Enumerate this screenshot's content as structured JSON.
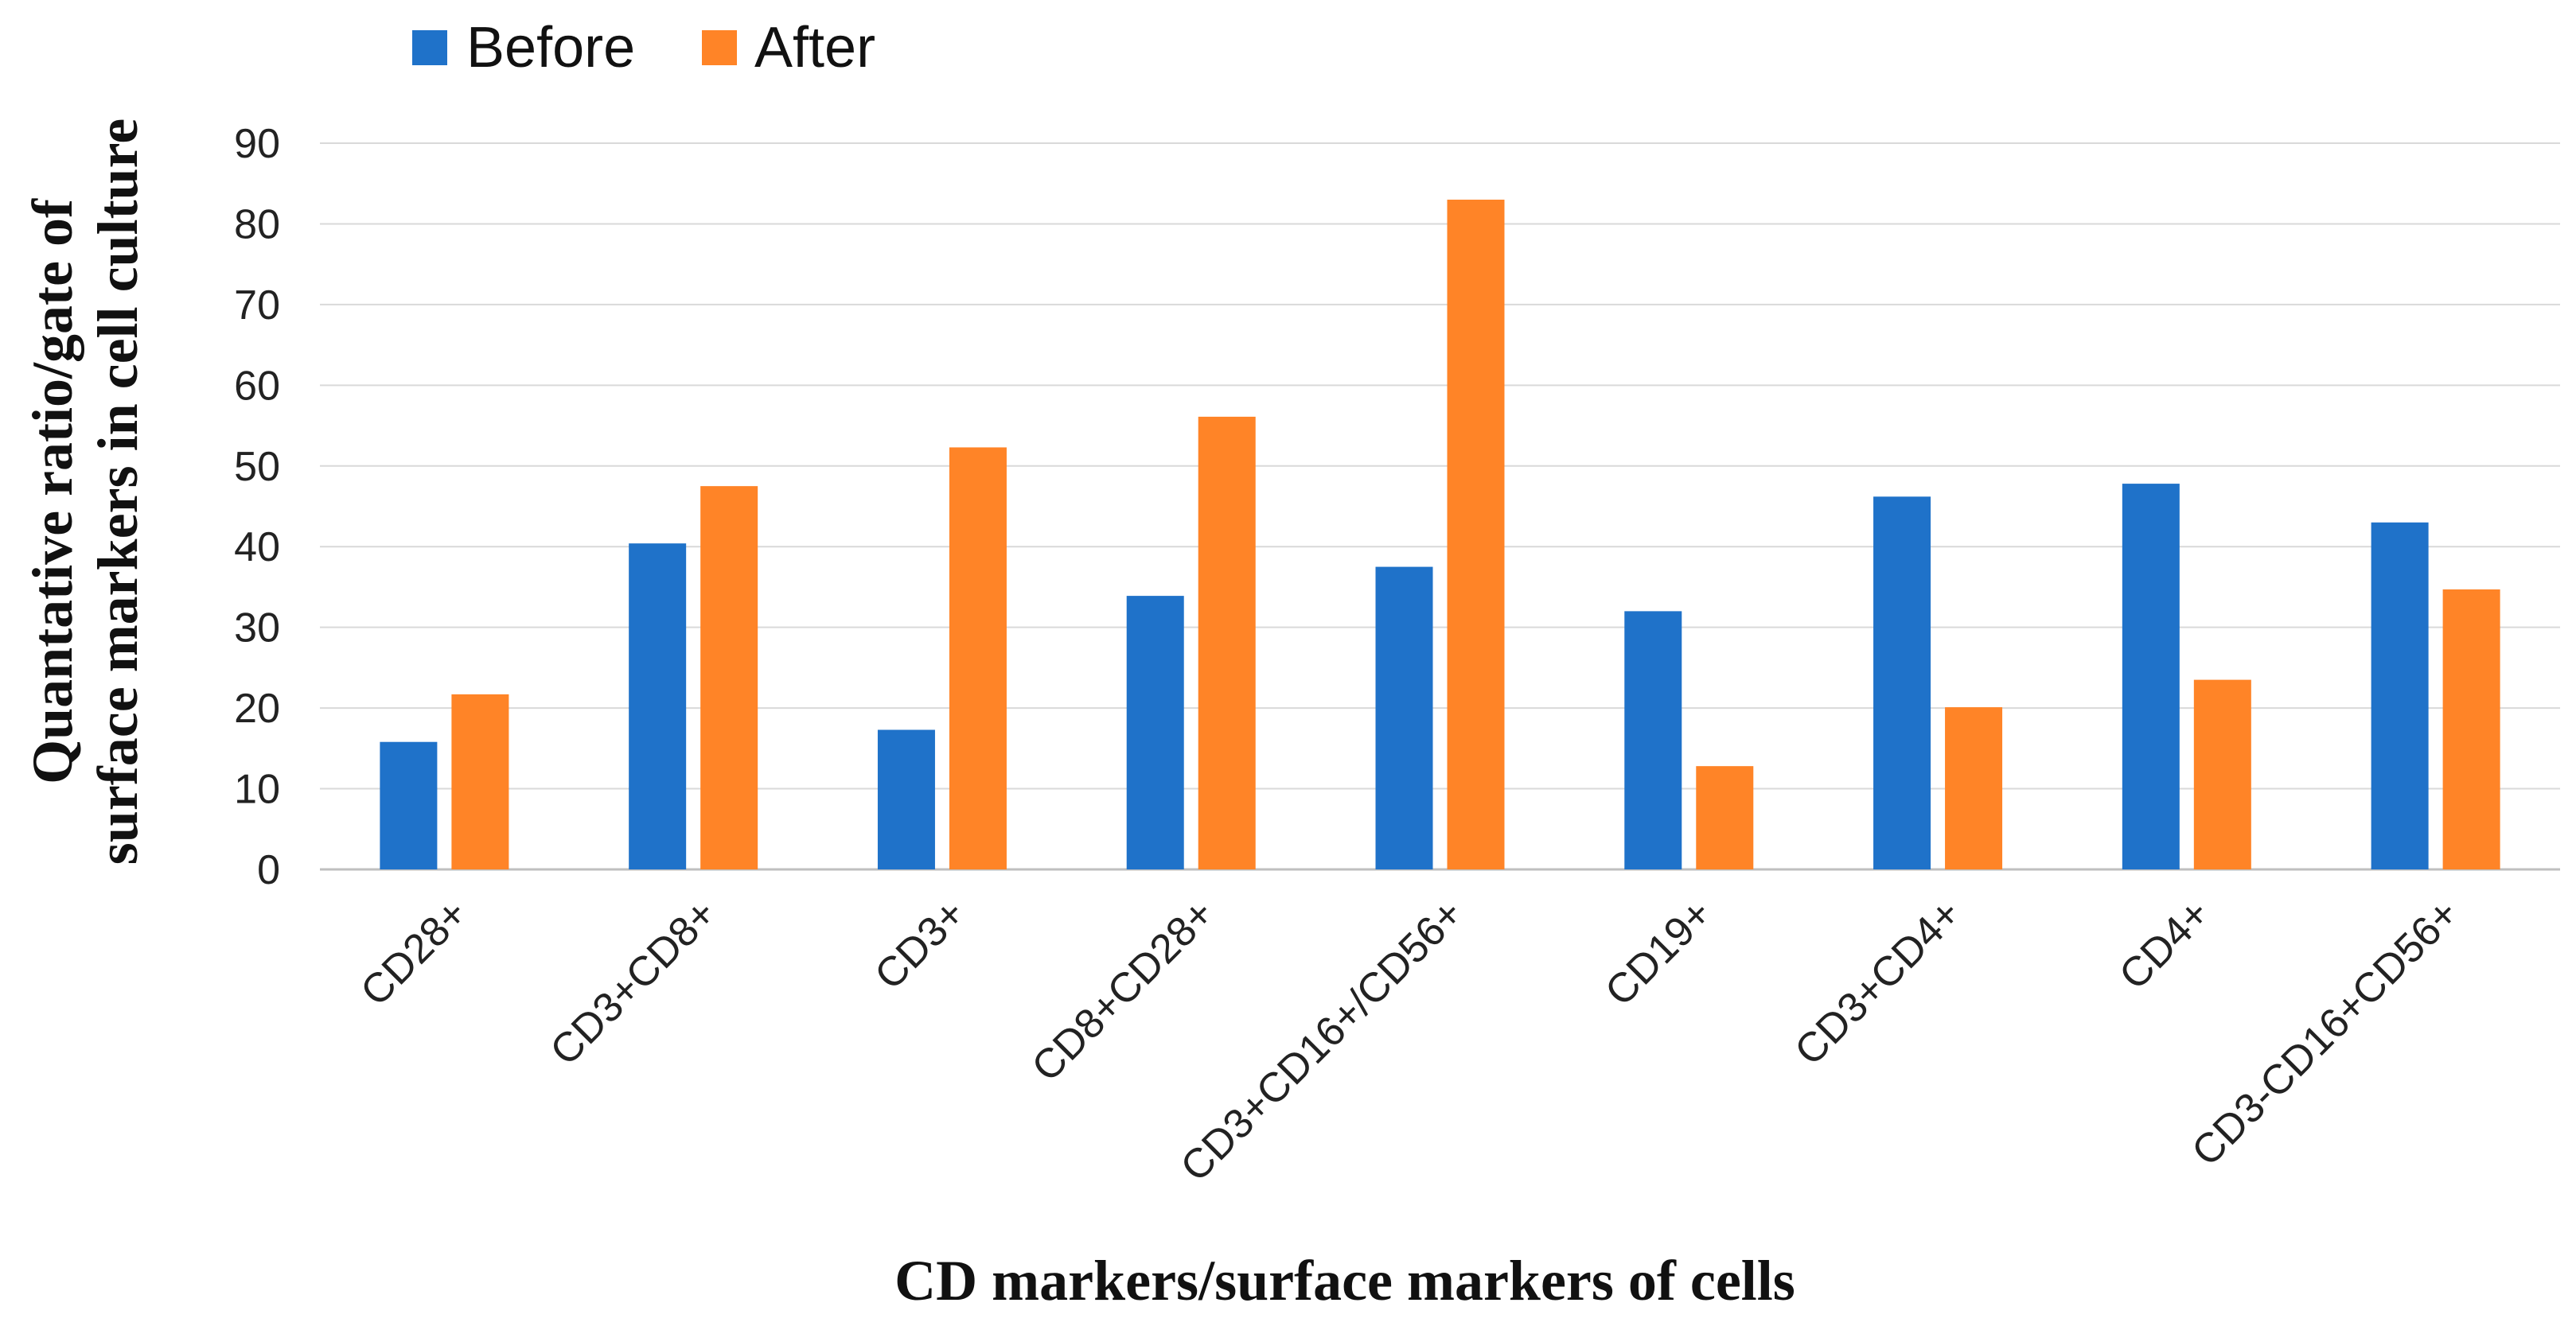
{
  "chart_data": {
    "type": "bar",
    "title": "",
    "xlabel": "CD markers/surface markers of cells",
    "ylabel": [
      "Quantative ratio/gate of",
      "surface markers in cell culture"
    ],
    "ylim": [
      0,
      90
    ],
    "yticks": [
      0,
      10,
      20,
      30,
      40,
      50,
      60,
      70,
      80,
      90
    ],
    "grid": true,
    "legend_position": "top-left",
    "categories": [
      "CD28+",
      "CD3+CD8+",
      "CD3+",
      "CD8+CD28+",
      "CD3+CD16+/CD56+",
      "CD19+",
      "CD3+CD4+",
      "CD4+",
      "CD3-CD16+CD56+"
    ],
    "series": [
      {
        "name": "Before",
        "color": "#1F72C9",
        "values": [
          15.8,
          40.4,
          17.3,
          33.9,
          37.5,
          32.0,
          46.2,
          47.8,
          43.0
        ]
      },
      {
        "name": "After",
        "color": "#FF8427",
        "values": [
          21.7,
          47.5,
          52.3,
          56.1,
          83.0,
          12.8,
          20.1,
          23.5,
          34.7
        ]
      }
    ]
  }
}
